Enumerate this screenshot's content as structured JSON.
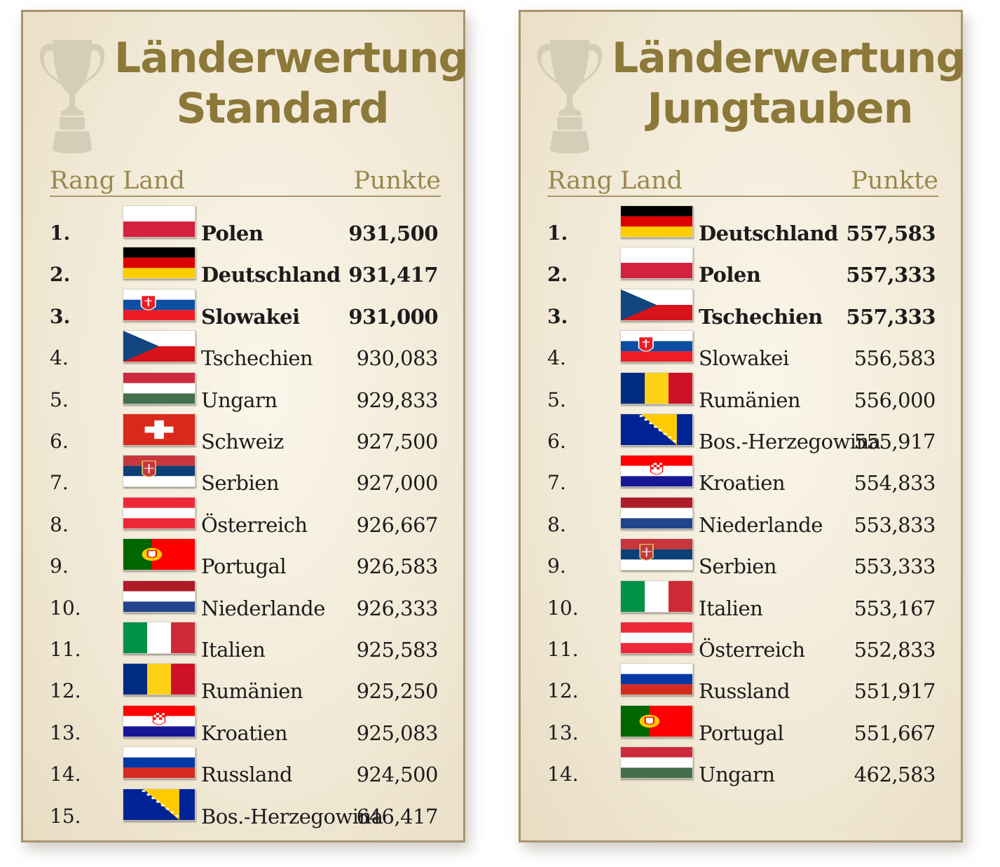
{
  "standard": {
    "title_line1": "Länderwertung",
    "title_line2": "Standard",
    "header": {
      "rang": "Rang",
      "land": "Land",
      "punkte": "Punkte"
    },
    "rows": [
      {
        "rank": "1.",
        "country": "Polen",
        "points": "931,500",
        "flag": "poland"
      },
      {
        "rank": "2.",
        "country": "Deutschland",
        "points": "931,417",
        "flag": "germany"
      },
      {
        "rank": "3.",
        "country": "Slowakei",
        "points": "931,000",
        "flag": "slovakia"
      },
      {
        "rank": "4.",
        "country": "Tschechien",
        "points": "930,083",
        "flag": "czech"
      },
      {
        "rank": "5.",
        "country": "Ungarn",
        "points": "929,833",
        "flag": "hungary"
      },
      {
        "rank": "6.",
        "country": "Schweiz",
        "points": "927,500",
        "flag": "switzerland"
      },
      {
        "rank": "7.",
        "country": "Serbien",
        "points": "927,000",
        "flag": "serbia"
      },
      {
        "rank": "8.",
        "country": "Österreich",
        "points": "926,667",
        "flag": "austria"
      },
      {
        "rank": "9.",
        "country": "Portugal",
        "points": "926,583",
        "flag": "portugal"
      },
      {
        "rank": "10.",
        "country": "Niederlande",
        "points": "926,333",
        "flag": "netherlands"
      },
      {
        "rank": "11.",
        "country": "Italien",
        "points": "925,583",
        "flag": "italy"
      },
      {
        "rank": "12.",
        "country": "Rumänien",
        "points": "925,250",
        "flag": "romania"
      },
      {
        "rank": "13.",
        "country": "Kroatien",
        "points": "925,083",
        "flag": "croatia"
      },
      {
        "rank": "14.",
        "country": "Russland",
        "points": "924,500",
        "flag": "russia"
      },
      {
        "rank": "15.",
        "country": "Bos.-Herzegowina",
        "points": "646,417",
        "flag": "bosnia"
      }
    ]
  },
  "jungtauben": {
    "title_line1": "Länderwertung",
    "title_line2": "Jungtauben",
    "header": {
      "rang": "Rang",
      "land": "Land",
      "punkte": "Punkte"
    },
    "rows": [
      {
        "rank": "1.",
        "country": "Deutschland",
        "points": "557,583",
        "flag": "germany"
      },
      {
        "rank": "2.",
        "country": "Polen",
        "points": "557,333",
        "flag": "poland"
      },
      {
        "rank": "3.",
        "country": "Tschechien",
        "points": "557,333",
        "flag": "czech"
      },
      {
        "rank": "4.",
        "country": "Slowakei",
        "points": "556,583",
        "flag": "slovakia"
      },
      {
        "rank": "5.",
        "country": "Rumänien",
        "points": "556,000",
        "flag": "romania"
      },
      {
        "rank": "6.",
        "country": "Bos.-Herzegowina",
        "points": "555,917",
        "flag": "bosnia"
      },
      {
        "rank": "7.",
        "country": "Kroatien",
        "points": "554,833",
        "flag": "croatia"
      },
      {
        "rank": "8.",
        "country": "Niederlande",
        "points": "553,833",
        "flag": "netherlands"
      },
      {
        "rank": "9.",
        "country": "Serbien",
        "points": "553,333",
        "flag": "serbia"
      },
      {
        "rank": "10.",
        "country": "Italien",
        "points": "553,167",
        "flag": "italy"
      },
      {
        "rank": "11.",
        "country": "Österreich",
        "points": "552,833",
        "flag": "austria"
      },
      {
        "rank": "12.",
        "country": "Russland",
        "points": "551,917",
        "flag": "russia"
      },
      {
        "rank": "13.",
        "country": "Portugal",
        "points": "551,667",
        "flag": "portugal"
      },
      {
        "rank": "14.",
        "country": "Ungarn",
        "points": "462,583",
        "flag": "hungary"
      }
    ]
  },
  "colors": {
    "title": "#8c7838",
    "header": "#9a8650",
    "rule": "#a8956e",
    "trophy": "#d6cdb8"
  },
  "icons": {
    "trophy": "trophy-icon"
  }
}
